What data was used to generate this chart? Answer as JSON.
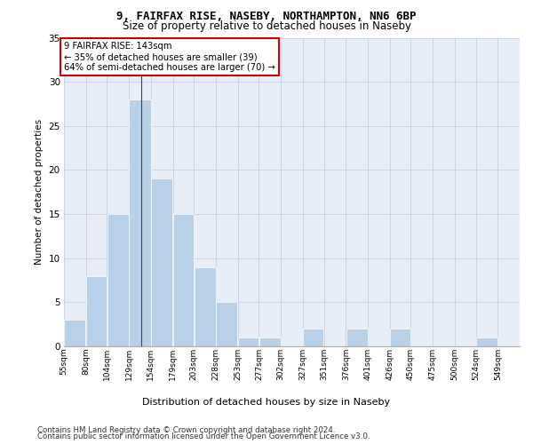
{
  "title_line1": "9, FAIRFAX RISE, NASEBY, NORTHAMPTON, NN6 6BP",
  "title_line2": "Size of property relative to detached houses in Naseby",
  "xlabel": "Distribution of detached houses by size in Naseby",
  "ylabel": "Number of detached properties",
  "footnote1": "Contains HM Land Registry data © Crown copyright and database right 2024.",
  "footnote2": "Contains public sector information licensed under the Open Government Licence v3.0.",
  "bins": [
    55,
    80,
    104,
    129,
    154,
    179,
    203,
    228,
    253,
    277,
    302,
    327,
    351,
    376,
    401,
    426,
    450,
    475,
    500,
    524,
    549
  ],
  "bin_labels": [
    "55sqm",
    "80sqm",
    "104sqm",
    "129sqm",
    "154sqm",
    "179sqm",
    "203sqm",
    "228sqm",
    "253sqm",
    "277sqm",
    "302sqm",
    "327sqm",
    "351sqm",
    "376sqm",
    "401sqm",
    "426sqm",
    "450sqm",
    "475sqm",
    "500sqm",
    "524sqm",
    "549sqm"
  ],
  "counts": [
    3,
    8,
    15,
    28,
    19,
    15,
    9,
    5,
    1,
    1,
    0,
    2,
    0,
    2,
    0,
    2,
    0,
    0,
    0,
    1,
    0
  ],
  "bar_color": "#b8d0e8",
  "bar_edgecolor": "#ffffff",
  "grid_color": "#c8d4e8",
  "bg_color": "#e8eef8",
  "annotation_text": "9 FAIRFAX RISE: 143sqm\n← 35% of detached houses are smaller (39)\n64% of semi-detached houses are larger (70) →",
  "annotation_box_facecolor": "#ffffff",
  "annotation_box_edgecolor": "#cc0000",
  "ylim": [
    0,
    35
  ],
  "yticks": [
    0,
    5,
    10,
    15,
    20,
    25,
    30,
    35
  ],
  "property_sqm": 143,
  "spine_color": "#aaaaaa"
}
